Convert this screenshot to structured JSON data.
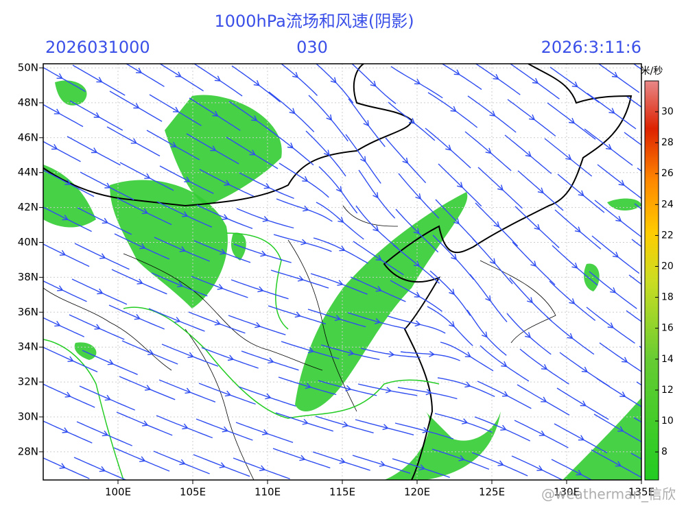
{
  "header": {
    "title": "1000hPa流场和风速(阴影)",
    "init_time": "2026031000",
    "forecast_hour": "030",
    "valid_time": "2026:3:11:6"
  },
  "map": {
    "lat_labels": [
      "50N",
      "48N",
      "46N",
      "44N",
      "42N",
      "40N",
      "38N",
      "36N",
      "34N",
      "32N",
      "30N",
      "28N"
    ],
    "lon_labels": [
      "100E",
      "105E",
      "110E",
      "115E",
      "120E",
      "125E",
      "130E",
      "135E"
    ]
  },
  "colorbar": {
    "unit": "米/秒",
    "ticks": [
      "30",
      "28",
      "26",
      "24",
      "22",
      "20",
      "18",
      "16",
      "14",
      "12",
      "10",
      "8"
    ]
  },
  "watermark": "@weatherman_信欣"
}
